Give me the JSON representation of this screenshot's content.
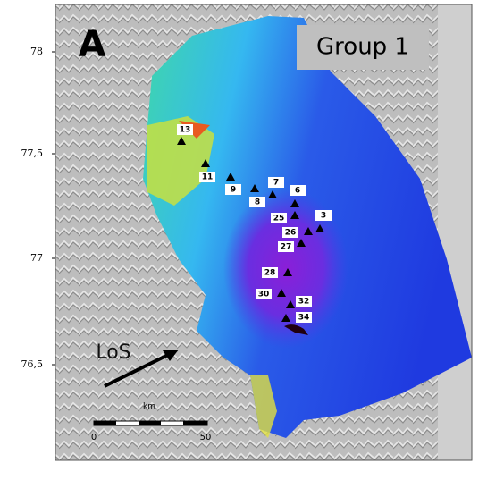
{
  "panel_label": "A",
  "group_label": "Group 1",
  "los_label": "LoS",
  "latitude_labels": [
    "78",
    "77,5",
    "77",
    "76,5"
  ],
  "scale_bar": {
    "unit": "km",
    "start": "0",
    "end": "50"
  },
  "stations": [
    "13",
    "11",
    "9",
    "8",
    "7",
    "6",
    "25",
    "3",
    "26",
    "27",
    "28",
    "30",
    "32",
    "34"
  ]
}
